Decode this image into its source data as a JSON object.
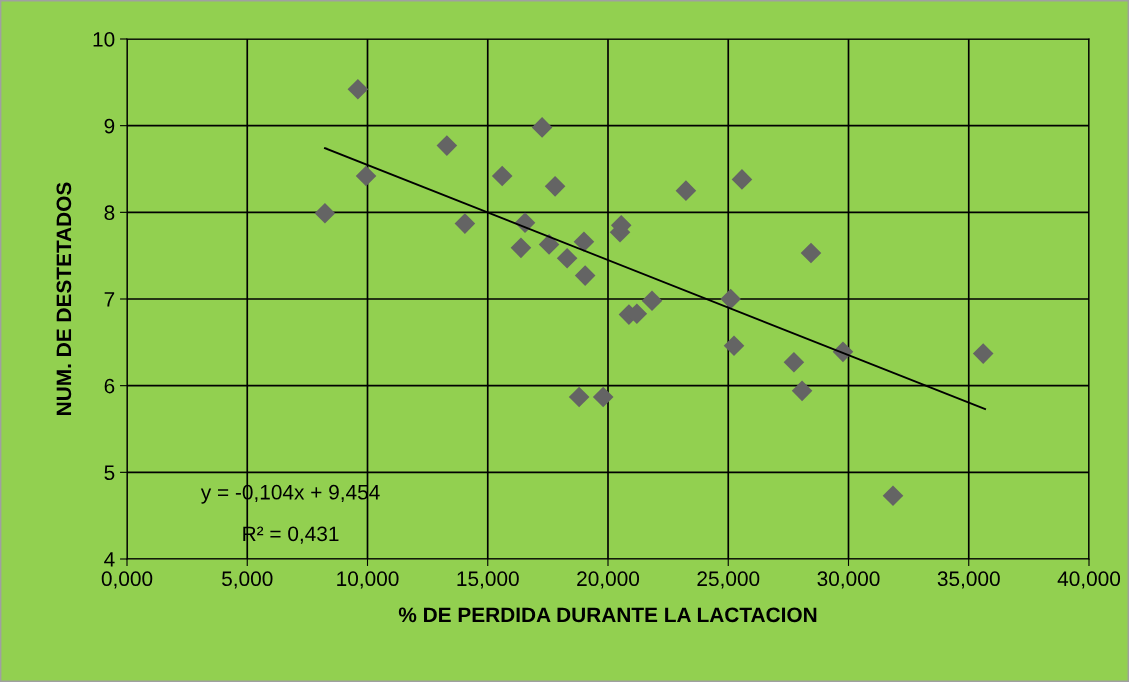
{
  "chart_data": {
    "type": "scatter",
    "xlabel": "% DE PERDIDA DURANTE LA LACTACION",
    "ylabel": "NUM. DE DESTETADOS",
    "xlim": [
      0,
      40
    ],
    "ylim": [
      4,
      10
    ],
    "xticks": [
      {
        "value": 0,
        "label": "0,000"
      },
      {
        "value": 5,
        "label": "5,000"
      },
      {
        "value": 10,
        "label": "10,000"
      },
      {
        "value": 15,
        "label": "15,000"
      },
      {
        "value": 20,
        "label": "20,000"
      },
      {
        "value": 25,
        "label": "25,000"
      },
      {
        "value": 30,
        "label": "30,000"
      },
      {
        "value": 35,
        "label": "35,000"
      },
      {
        "value": 40,
        "label": "40,000"
      }
    ],
    "yticks": [
      4,
      5,
      6,
      7,
      8,
      9,
      10
    ],
    "grid": true,
    "marker": "diamond",
    "series": [
      {
        "color": "#646464",
        "x": [
          8.23,
          9.6,
          9.94,
          13.3,
          14.05,
          15.6,
          17.26,
          17.8,
          16.55,
          16.38,
          17.55,
          18.3,
          19.0,
          19.05,
          18.8,
          19.8,
          20.5,
          20.55,
          20.87,
          21.2,
          21.83,
          23.24,
          25.57,
          25.1,
          25.24,
          27.73,
          28.07,
          28.44,
          29.77,
          31.85,
          35.6
        ],
        "values": [
          7.99,
          9.42,
          8.42,
          8.77,
          7.87,
          8.42,
          8.98,
          8.3,
          7.88,
          7.59,
          7.63,
          7.47,
          7.66,
          7.27,
          5.87,
          5.87,
          7.77,
          7.85,
          6.82,
          6.83,
          6.98,
          8.25,
          8.38,
          7.0,
          6.46,
          6.27,
          5.94,
          7.53,
          6.39,
          4.73,
          6.37
        ]
      },
      {
        "type": "line",
        "color": "#000000",
        "marker": "none",
        "x": [
          8.23,
          35.68
        ],
        "values": [
          8.74,
          5.73
        ]
      }
    ],
    "annotations": [
      "y = -0,104x + 9,454",
      "R² = 0,431"
    ]
  }
}
